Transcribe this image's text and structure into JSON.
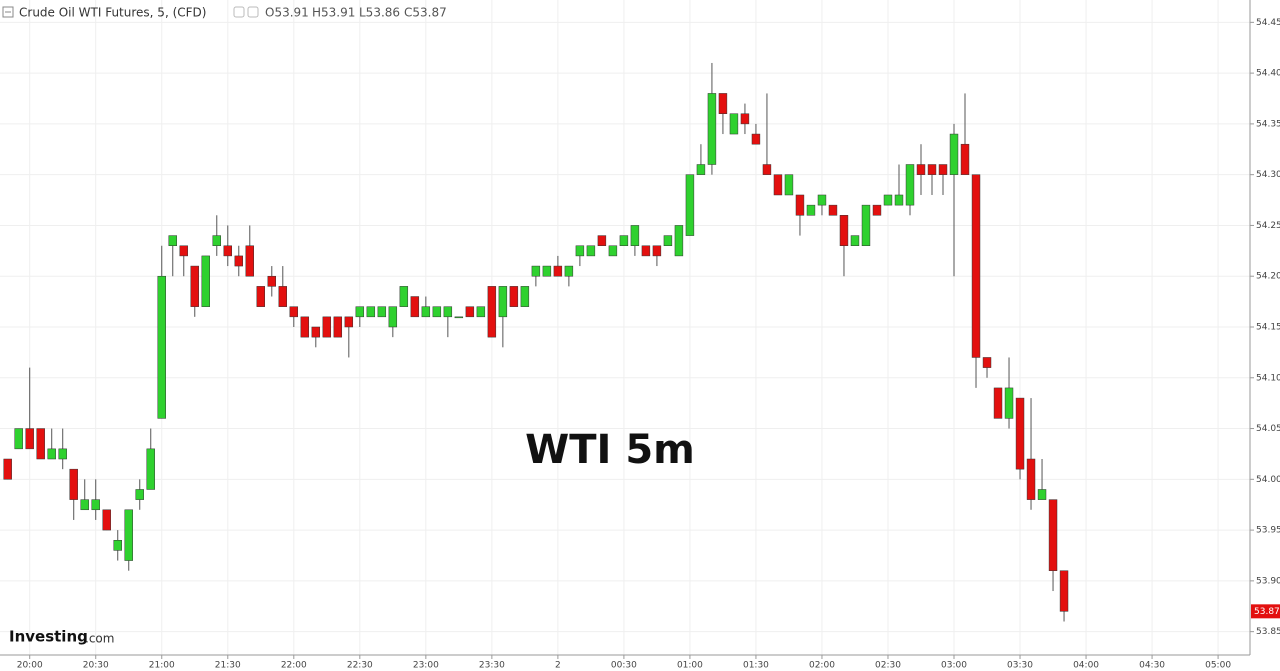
{
  "header": {
    "title": "Crude Oil WTI Futures, 5, (CFD)",
    "ohlc": [
      "O53.91",
      "H53.91",
      "L53.86",
      "C53.87"
    ]
  },
  "watermark": "WTI 5m",
  "logo": {
    "brand": "Investing",
    "suffix": ".com"
  },
  "chart_data": {
    "type": "candlestick",
    "up_color": "#2fd12f",
    "down_color": "#e3100f",
    "grid": true,
    "x": [
      0,
      1,
      2,
      3,
      4,
      5,
      6,
      7,
      8,
      9,
      10,
      11,
      12,
      13,
      14,
      15,
      16,
      17,
      18,
      19,
      20,
      21,
      22,
      23,
      24,
      25,
      26,
      27,
      28,
      29,
      30,
      31,
      32,
      33,
      34,
      35,
      36,
      37,
      38,
      39,
      40,
      41,
      42,
      43,
      44,
      45,
      46,
      47,
      48,
      49,
      50,
      51,
      52,
      53,
      54,
      55,
      56,
      57,
      58,
      59,
      60,
      61,
      62,
      63,
      64,
      65,
      66,
      67,
      68,
      69,
      70,
      71,
      72,
      73,
      74,
      75,
      76,
      77,
      78,
      79,
      80,
      81,
      82,
      83,
      84,
      85,
      86,
      87,
      88,
      89,
      90,
      91,
      92,
      93,
      94,
      95,
      96
    ],
    "open": [
      54.02,
      54.03,
      54.05,
      54.05,
      54.02,
      54.02,
      54.01,
      53.97,
      53.97,
      53.97,
      53.93,
      53.92,
      53.98,
      53.99,
      54.06,
      54.23,
      54.23,
      54.21,
      54.17,
      54.23,
      54.23,
      54.22,
      54.23,
      54.19,
      54.2,
      54.19,
      54.17,
      54.16,
      54.15,
      54.16,
      54.16,
      54.16,
      54.16,
      54.16,
      54.16,
      54.15,
      54.17,
      54.18,
      54.16,
      54.16,
      54.16,
      54.16,
      54.17,
      54.16,
      54.19,
      54.16,
      54.19,
      54.17,
      54.2,
      54.2,
      54.21,
      54.2,
      54.22,
      54.22,
      54.24,
      54.22,
      54.23,
      54.23,
      54.23,
      54.23,
      54.23,
      54.22,
      54.24,
      54.3,
      54.31,
      54.38,
      54.34,
      54.36,
      54.34,
      54.31,
      54.3,
      54.28,
      54.28,
      54.26,
      54.27,
      54.27,
      54.26,
      54.23,
      54.23,
      54.27,
      54.27,
      54.27,
      54.27,
      54.31,
      54.31,
      54.31,
      54.3,
      54.33,
      54.3,
      54.12,
      54.09,
      54.06,
      54.08,
      54.02,
      53.98,
      53.98,
      53.91
    ],
    "high": [
      54.02,
      54.05,
      54.11,
      54.05,
      54.05,
      54.05,
      54.01,
      54.0,
      54.0,
      53.97,
      53.95,
      53.97,
      54.0,
      54.05,
      54.23,
      54.24,
      54.23,
      54.21,
      54.22,
      54.26,
      54.25,
      54.23,
      54.25,
      54.19,
      54.21,
      54.21,
      54.17,
      54.16,
      54.15,
      54.16,
      54.16,
      54.16,
      54.17,
      54.17,
      54.17,
      54.17,
      54.19,
      54.18,
      54.18,
      54.17,
      54.17,
      54.16,
      54.17,
      54.17,
      54.19,
      54.19,
      54.19,
      54.19,
      54.21,
      54.21,
      54.22,
      54.21,
      54.23,
      54.23,
      54.24,
      54.23,
      54.24,
      54.25,
      54.23,
      54.23,
      54.24,
      54.25,
      54.3,
      54.33,
      54.41,
      54.38,
      54.36,
      54.37,
      54.35,
      54.38,
      54.3,
      54.3,
      54.28,
      54.27,
      54.28,
      54.27,
      54.26,
      54.24,
      54.27,
      54.27,
      54.28,
      54.31,
      54.31,
      54.33,
      54.31,
      54.31,
      54.35,
      54.38,
      54.3,
      54.12,
      54.09,
      54.12,
      54.08,
      54.08,
      54.02,
      53.98,
      53.91
    ],
    "low": [
      54.0,
      54.03,
      54.03,
      54.02,
      54.02,
      54.01,
      53.96,
      53.97,
      53.96,
      53.95,
      53.92,
      53.91,
      53.97,
      53.99,
      54.06,
      54.2,
      54.2,
      54.16,
      54.17,
      54.22,
      54.21,
      54.2,
      54.2,
      54.17,
      54.18,
      54.17,
      54.15,
      54.14,
      54.13,
      54.14,
      54.14,
      54.12,
      54.15,
      54.16,
      54.16,
      54.14,
      54.17,
      54.16,
      54.16,
      54.16,
      54.14,
      54.16,
      54.16,
      54.16,
      54.14,
      54.13,
      54.17,
      54.17,
      54.19,
      54.2,
      54.2,
      54.19,
      54.21,
      54.22,
      54.23,
      54.22,
      54.23,
      54.22,
      54.22,
      54.21,
      54.23,
      54.22,
      54.24,
      54.3,
      54.3,
      54.34,
      54.34,
      54.34,
      54.33,
      54.3,
      54.28,
      54.28,
      54.24,
      54.26,
      54.26,
      54.26,
      54.2,
      54.23,
      54.23,
      54.26,
      54.27,
      54.27,
      54.26,
      54.28,
      54.28,
      54.28,
      54.2,
      54.3,
      54.09,
      54.1,
      54.06,
      54.05,
      54.0,
      53.97,
      53.98,
      53.89,
      53.86
    ],
    "close": [
      54.0,
      54.05,
      54.03,
      54.02,
      54.03,
      54.03,
      53.98,
      53.98,
      53.98,
      53.95,
      53.94,
      53.97,
      53.99,
      54.03,
      54.2,
      54.24,
      54.22,
      54.17,
      54.22,
      54.24,
      54.22,
      54.21,
      54.2,
      54.17,
      54.19,
      54.17,
      54.16,
      54.14,
      54.14,
      54.14,
      54.14,
      54.15,
      54.17,
      54.17,
      54.17,
      54.17,
      54.19,
      54.16,
      54.17,
      54.17,
      54.17,
      54.16,
      54.16,
      54.17,
      54.14,
      54.19,
      54.17,
      54.19,
      54.21,
      54.21,
      54.2,
      54.21,
      54.23,
      54.23,
      54.23,
      54.23,
      54.24,
      54.25,
      54.22,
      54.22,
      54.24,
      54.25,
      54.3,
      54.31,
      54.38,
      54.36,
      54.36,
      54.35,
      54.33,
      54.3,
      54.28,
      54.3,
      54.26,
      54.27,
      54.28,
      54.26,
      54.23,
      54.24,
      54.27,
      54.26,
      54.28,
      54.28,
      54.31,
      54.3,
      54.3,
      54.3,
      54.34,
      54.3,
      54.12,
      54.11,
      54.06,
      54.09,
      54.01,
      53.98,
      53.99,
      53.91,
      53.87
    ],
    "last_price": 53.87,
    "xlim": [
      -0.7,
      112.9
    ],
    "xticks": [
      {
        "value": 2,
        "label": "20:00"
      },
      {
        "value": 8,
        "label": "20:30"
      },
      {
        "value": 14,
        "label": "21:00"
      },
      {
        "value": 20,
        "label": "21:30"
      },
      {
        "value": 26,
        "label": "22:00"
      },
      {
        "value": 32,
        "label": "22:30"
      },
      {
        "value": 38,
        "label": "23:00"
      },
      {
        "value": 44,
        "label": "23:30"
      },
      {
        "value": 50,
        "label": "2"
      },
      {
        "value": 56,
        "label": "00:30"
      },
      {
        "value": 62,
        "label": "01:00"
      },
      {
        "value": 68,
        "label": "01:30"
      },
      {
        "value": 74,
        "label": "02:00"
      },
      {
        "value": 80,
        "label": "02:30"
      },
      {
        "value": 86,
        "label": "03:00"
      },
      {
        "value": 92,
        "label": "03:30"
      },
      {
        "value": 98,
        "label": "04:00"
      },
      {
        "value": 104,
        "label": "04:30"
      },
      {
        "value": 110,
        "label": "05:00"
      }
    ],
    "ylim": [
      53.827,
      54.472
    ],
    "yticks": [
      53.85,
      {
        "value": 53.9,
        "label": "53.90"
      },
      53.95,
      {
        "value": 54.0,
        "label": "54.00"
      },
      54.05,
      {
        "value": 54.1,
        "label": "54.10"
      },
      54.15,
      {
        "value": 54.2,
        "label": "54.20"
      },
      54.25,
      {
        "value": 54.3,
        "label": "54.30"
      },
      54.35,
      {
        "value": 54.4,
        "label": "54.40"
      },
      54.45
    ]
  }
}
